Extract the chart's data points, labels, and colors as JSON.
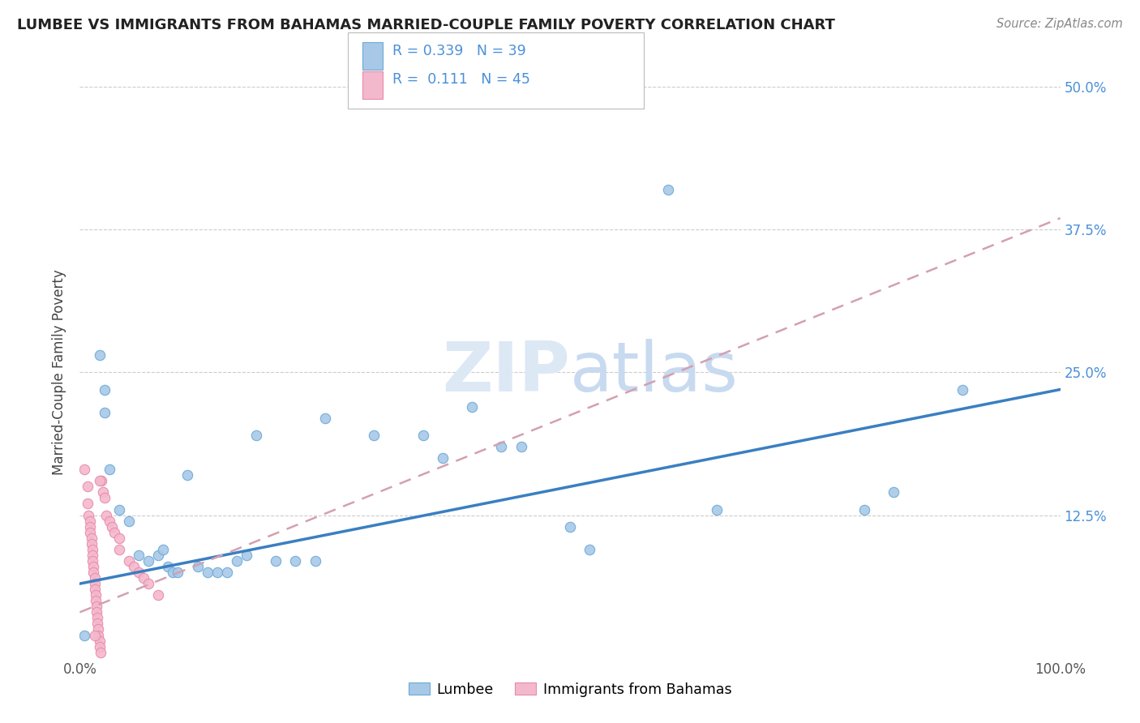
{
  "title": "LUMBEE VS IMMIGRANTS FROM BAHAMAS MARRIED-COUPLE FAMILY POVERTY CORRELATION CHART",
  "source": "Source: ZipAtlas.com",
  "ylabel": "Married-Couple Family Poverty",
  "xlim": [
    0,
    1.0
  ],
  "ylim": [
    0,
    0.5
  ],
  "ytick_labels": [
    "12.5%",
    "25.0%",
    "37.5%",
    "50.0%"
  ],
  "ytick_values": [
    0.125,
    0.25,
    0.375,
    0.5
  ],
  "lumbee_color": "#a8c8e8",
  "lumbee_edge_color": "#6aaad4",
  "bahamas_color": "#f4b8cc",
  "bahamas_edge_color": "#e88aaa",
  "lumbee_line_color": "#3a7fc1",
  "bahamas_line_color": "#d4a0b0",
  "lumbee_line_x": [
    0.0,
    1.0
  ],
  "lumbee_line_y": [
    0.065,
    0.235
  ],
  "bahamas_line_x": [
    0.0,
    1.0
  ],
  "bahamas_line_y": [
    0.04,
    0.385
  ],
  "lumbee_scatter": [
    [
      0.005,
      0.02
    ],
    [
      0.02,
      0.265
    ],
    [
      0.025,
      0.235
    ],
    [
      0.025,
      0.215
    ],
    [
      0.03,
      0.165
    ],
    [
      0.04,
      0.13
    ],
    [
      0.05,
      0.12
    ],
    [
      0.06,
      0.09
    ],
    [
      0.07,
      0.085
    ],
    [
      0.08,
      0.09
    ],
    [
      0.085,
      0.095
    ],
    [
      0.09,
      0.08
    ],
    [
      0.095,
      0.075
    ],
    [
      0.1,
      0.075
    ],
    [
      0.11,
      0.16
    ],
    [
      0.12,
      0.08
    ],
    [
      0.13,
      0.075
    ],
    [
      0.14,
      0.075
    ],
    [
      0.15,
      0.075
    ],
    [
      0.16,
      0.085
    ],
    [
      0.17,
      0.09
    ],
    [
      0.18,
      0.195
    ],
    [
      0.2,
      0.085
    ],
    [
      0.22,
      0.085
    ],
    [
      0.24,
      0.085
    ],
    [
      0.25,
      0.21
    ],
    [
      0.3,
      0.195
    ],
    [
      0.35,
      0.195
    ],
    [
      0.37,
      0.175
    ],
    [
      0.4,
      0.22
    ],
    [
      0.43,
      0.185
    ],
    [
      0.45,
      0.185
    ],
    [
      0.5,
      0.115
    ],
    [
      0.52,
      0.095
    ],
    [
      0.6,
      0.41
    ],
    [
      0.65,
      0.13
    ],
    [
      0.8,
      0.13
    ],
    [
      0.83,
      0.145
    ],
    [
      0.9,
      0.235
    ]
  ],
  "bahamas_scatter": [
    [
      0.005,
      0.165
    ],
    [
      0.008,
      0.15
    ],
    [
      0.008,
      0.135
    ],
    [
      0.009,
      0.125
    ],
    [
      0.01,
      0.12
    ],
    [
      0.01,
      0.115
    ],
    [
      0.01,
      0.11
    ],
    [
      0.012,
      0.105
    ],
    [
      0.012,
      0.1
    ],
    [
      0.013,
      0.095
    ],
    [
      0.013,
      0.09
    ],
    [
      0.013,
      0.085
    ],
    [
      0.014,
      0.08
    ],
    [
      0.014,
      0.075
    ],
    [
      0.015,
      0.07
    ],
    [
      0.015,
      0.065
    ],
    [
      0.015,
      0.06
    ],
    [
      0.016,
      0.055
    ],
    [
      0.016,
      0.05
    ],
    [
      0.017,
      0.045
    ],
    [
      0.017,
      0.04
    ],
    [
      0.018,
      0.035
    ],
    [
      0.018,
      0.03
    ],
    [
      0.019,
      0.025
    ],
    [
      0.019,
      0.02
    ],
    [
      0.02,
      0.015
    ],
    [
      0.02,
      0.01
    ],
    [
      0.021,
      0.005
    ],
    [
      0.022,
      0.155
    ],
    [
      0.024,
      0.145
    ],
    [
      0.025,
      0.14
    ],
    [
      0.027,
      0.125
    ],
    [
      0.03,
      0.12
    ],
    [
      0.033,
      0.115
    ],
    [
      0.035,
      0.11
    ],
    [
      0.04,
      0.105
    ],
    [
      0.04,
      0.095
    ],
    [
      0.05,
      0.085
    ],
    [
      0.055,
      0.08
    ],
    [
      0.06,
      0.075
    ],
    [
      0.065,
      0.07
    ],
    [
      0.07,
      0.065
    ],
    [
      0.08,
      0.055
    ],
    [
      0.02,
      0.155
    ],
    [
      0.015,
      0.02
    ]
  ]
}
